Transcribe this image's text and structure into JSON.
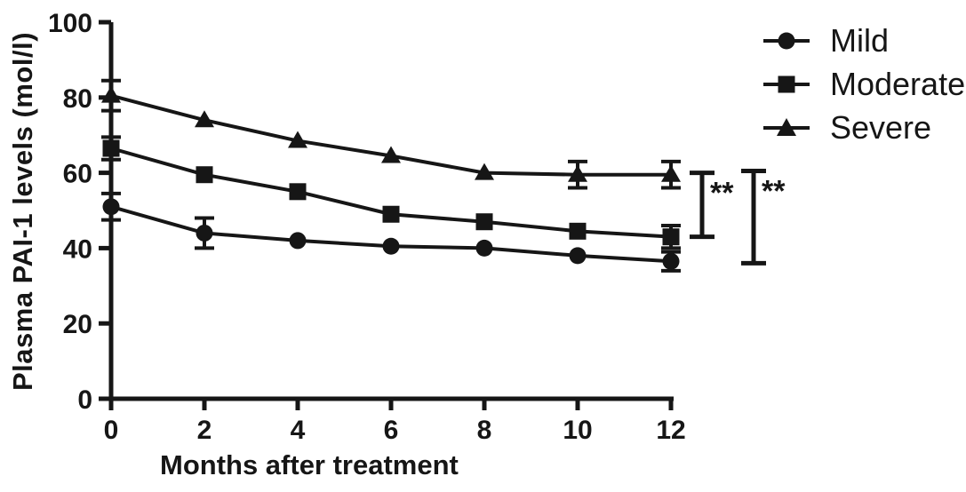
{
  "figure": {
    "background": "#ffffff",
    "ink_color": "#161616"
  },
  "chart_data": {
    "type": "line",
    "title": "",
    "xlabel": "Months after treatment",
    "ylabel": "Plasma PAI-1 levels (mol/l)",
    "x": [
      0,
      2,
      4,
      6,
      8,
      10,
      12
    ],
    "xlim": [
      0,
      12
    ],
    "ylim": [
      0,
      100
    ],
    "xticks": [
      0,
      2,
      4,
      6,
      8,
      10,
      12
    ],
    "yticks": [
      0,
      20,
      40,
      60,
      80,
      100
    ],
    "grid": false,
    "legend_position": "top-right",
    "series": [
      {
        "name": "Mild",
        "marker": "circle",
        "values": [
          51,
          44,
          42,
          40.5,
          40,
          38,
          36.5
        ],
        "errors": [
          3.5,
          4,
          0,
          0,
          0,
          0,
          2.5
        ]
      },
      {
        "name": "Moderate",
        "marker": "square",
        "values": [
          66.5,
          59.5,
          55,
          49,
          47,
          44.5,
          43
        ],
        "errors": [
          3,
          0,
          0,
          0,
          0,
          0,
          3
        ]
      },
      {
        "name": "Severe",
        "marker": "triangle",
        "values": [
          80.5,
          74,
          68.5,
          64.5,
          60,
          59.5,
          59.5
        ],
        "errors": [
          4,
          0,
          0,
          0,
          0,
          3.5,
          3.5
        ]
      }
    ],
    "annotations": [
      {
        "type": "bracket",
        "label": "**",
        "top_value": 60,
        "bottom_value": 43
      },
      {
        "type": "bracket",
        "label": "**",
        "top_value": 60.5,
        "bottom_value": 36
      }
    ]
  },
  "legend": {
    "items": [
      {
        "label": "Mild",
        "marker": "circle"
      },
      {
        "label": "Moderate",
        "marker": "square"
      },
      {
        "label": "Severe",
        "marker": "triangle"
      }
    ]
  }
}
